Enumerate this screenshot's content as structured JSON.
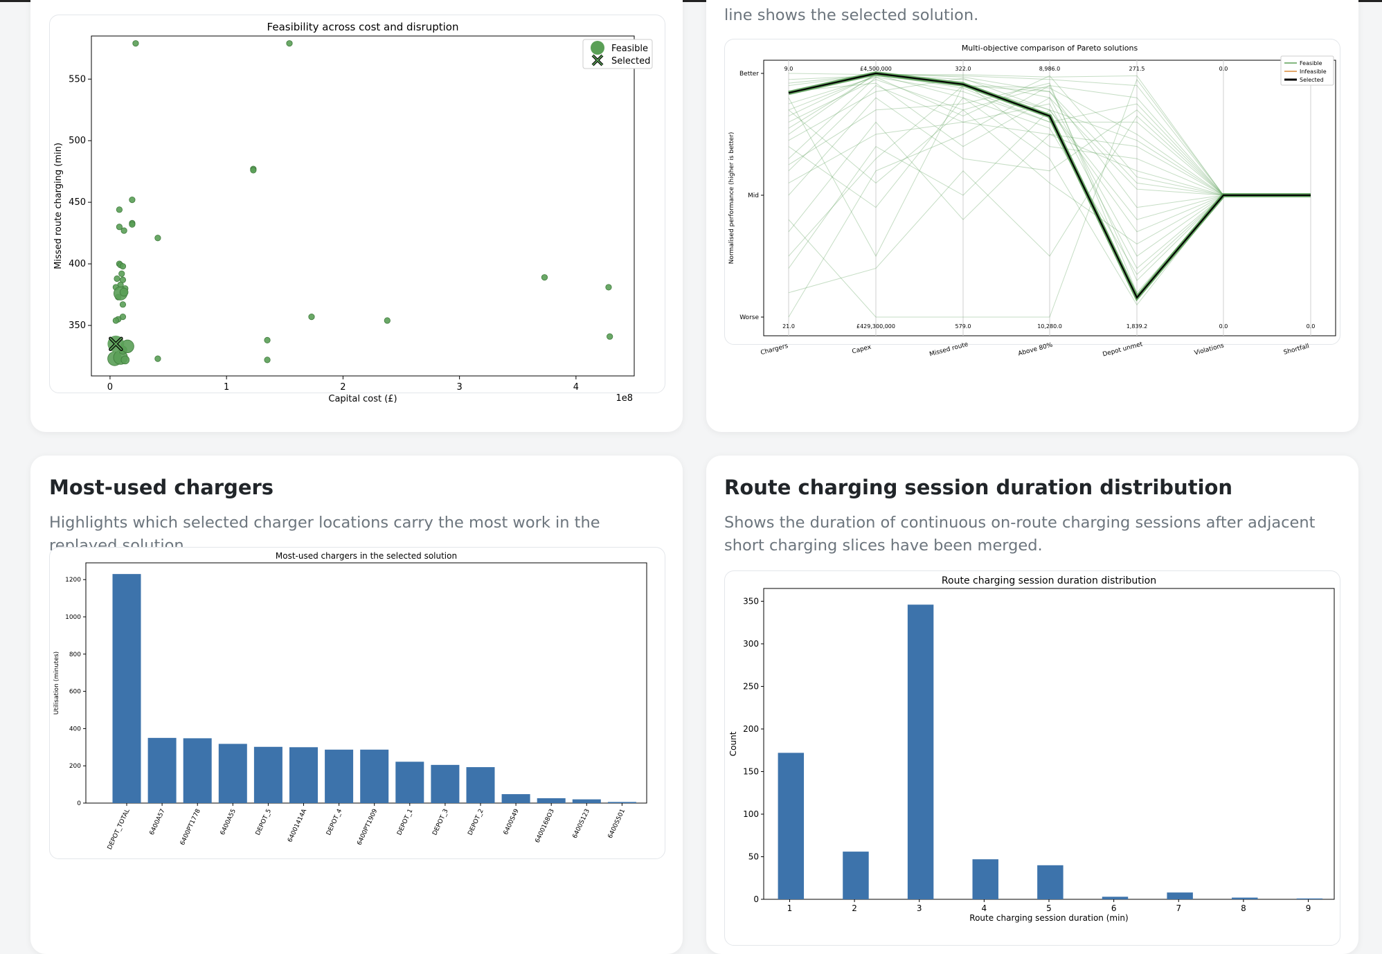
{
  "cards": {
    "scatter": {
      "desc_tail": ""
    },
    "parallel": {
      "desc_tail": "line shows the selected solution."
    },
    "chargers": {
      "title": "Most-used chargers",
      "desc": "Highlights which selected charger locations carry the most work in the replayed solution."
    },
    "sessions": {
      "title": "Route charging session duration distribution",
      "desc": "Shows the duration of continuous on-route charging sessions after adjacent short charging slices have been merged."
    }
  },
  "colors": {
    "feasible": "#5a9f56",
    "feasible_edge": "#3f7a3c",
    "selected_edge": "#000000",
    "bar": "#3d73ab",
    "selected_line": "#000000",
    "infeasible": "#d98b3a"
  },
  "chart_data": [
    {
      "type": "scatter",
      "title": "Feasibility across cost and disruption",
      "xlabel": "Capital cost (£)",
      "ylabel": "Missed route charging (min)",
      "x_scale_label": "1e8",
      "x_ticks": [
        "0",
        "1",
        "2",
        "3",
        "4"
      ],
      "y_ticks": [
        "350",
        "400",
        "450",
        "500",
        "550"
      ],
      "xlim": [
        -0.16,
        4.5
      ],
      "ylim": [
        309,
        585
      ],
      "legend_position": "top-right",
      "legend": [
        "Feasible",
        "Selected"
      ],
      "series": [
        {
          "name": "Feasible",
          "points": [
            [
              0.22,
              579
            ],
            [
              1.54,
              579
            ],
            [
              1.23,
              477
            ],
            [
              1.23,
              476
            ],
            [
              0.19,
              452
            ],
            [
              0.08,
              444
            ],
            [
              0.19,
              433
            ],
            [
              0.19,
              432
            ],
            [
              0.08,
              430
            ],
            [
              0.12,
              427
            ],
            [
              0.41,
              421
            ],
            [
              0.08,
              400
            ],
            [
              0.09,
              399
            ],
            [
              0.11,
              398
            ],
            [
              0.1,
              392
            ],
            [
              0.06,
              388
            ],
            [
              0.11,
              387
            ],
            [
              0.09,
              383
            ],
            [
              0.05,
              381
            ],
            [
              0.13,
              380
            ],
            [
              0.07,
              373
            ],
            [
              0.11,
              367
            ],
            [
              3.73,
              389
            ],
            [
              4.28,
              381
            ],
            [
              1.73,
              357
            ],
            [
              2.38,
              354
            ],
            [
              0.11,
              357
            ],
            [
              0.07,
              355
            ],
            [
              0.05,
              354
            ],
            [
              4.29,
              341
            ],
            [
              1.35,
              338
            ],
            [
              1.35,
              322
            ],
            [
              0.41,
              323
            ],
            [
              0.04,
              323
            ],
            [
              0.09,
              324
            ],
            [
              0.13,
              322
            ],
            [
              0.11,
              330
            ],
            [
              0.15,
              333
            ],
            [
              0.09,
              376
            ],
            [
              0.12,
              377
            ]
          ],
          "sizes": [
            1,
            1,
            1,
            1,
            1,
            1,
            1,
            1,
            1,
            1,
            1,
            1,
            1,
            1,
            1,
            1,
            1,
            1,
            1,
            1,
            1,
            1,
            1,
            1,
            1,
            1,
            1,
            1,
            1,
            1,
            1,
            1,
            1,
            2.4,
            2.4,
            1.4,
            1.4,
            2.2,
            2.3,
            1.4
          ]
        },
        {
          "name": "Selected",
          "points": [
            [
              0.05,
              335
            ]
          ]
        }
      ]
    },
    {
      "type": "parallel",
      "title": "Multi-objective comparison of Pareto solutions",
      "ylabel": "Normalised performance (higher is better)",
      "y_ticks": [
        "Better",
        "Mid",
        "Worse"
      ],
      "legend_position": "top-right",
      "legend": [
        "Feasible",
        "Infeasible",
        "Selected"
      ],
      "axes": [
        {
          "label": "Chargers",
          "best": "9.0",
          "worst": "21.0"
        },
        {
          "label": "Capex",
          "best": "£4,500,000",
          "worst": "£429,300,000"
        },
        {
          "label": "Missed route",
          "best": "322.0",
          "worst": "579.0"
        },
        {
          "label": "Above 80%",
          "best": "8,986.0",
          "worst": "10,280.0"
        },
        {
          "label": "Depot unmet",
          "best": "271.5",
          "worst": "1,839.2"
        },
        {
          "label": "Violations",
          "best": "0.0",
          "worst": "0.0"
        },
        {
          "label": "Shortfall",
          "best": "0.0",
          "worst": "0.0"
        }
      ],
      "selected": [
        0.84,
        1.0,
        0.91,
        0.65,
        -0.84,
        0.0,
        0.0
      ],
      "feasible_lines": [
        [
          0.9,
          0.99,
          0.95,
          0.8,
          -0.5,
          0.0,
          0.0
        ],
        [
          0.7,
          0.98,
          0.9,
          0.7,
          -0.2,
          0.0,
          0.0
        ],
        [
          0.5,
          1.0,
          0.97,
          0.85,
          0.1,
          0.0,
          0.0
        ],
        [
          0.3,
          0.97,
          0.85,
          0.6,
          0.6,
          0.0,
          0.0
        ],
        [
          0.6,
          0.95,
          0.7,
          0.9,
          -0.7,
          0.0,
          0.0
        ],
        [
          1.0,
          0.99,
          0.98,
          0.95,
          0.9,
          0.0,
          0.0
        ],
        [
          0.2,
          0.9,
          0.6,
          0.5,
          0.4,
          0.0,
          0.0
        ],
        [
          0.0,
          0.8,
          0.3,
          0.2,
          0.7,
          0.0,
          0.0
        ],
        [
          -0.3,
          0.6,
          -0.2,
          0.5,
          0.2,
          0.0,
          0.0
        ],
        [
          -0.6,
          0.4,
          0.0,
          0.7,
          -0.3,
          0.0,
          0.0
        ],
        [
          -1.0,
          0.2,
          0.5,
          0.9,
          0.8,
          0.0,
          0.0
        ],
        [
          0.4,
          -0.1,
          0.8,
          0.3,
          -0.9,
          0.0,
          0.0
        ],
        [
          0.8,
          -0.5,
          0.9,
          0.88,
          0.5,
          0.0,
          0.0
        ],
        [
          -0.2,
          -1.0,
          -1.0,
          -1.0,
          0.95,
          0.0,
          0.0
        ],
        [
          0.1,
          0.5,
          0.6,
          0.75,
          -0.6,
          0.0,
          0.0
        ],
        [
          0.95,
          0.98,
          0.93,
          0.4,
          0.3,
          0.0,
          0.0
        ],
        [
          0.7,
          0.1,
          0.7,
          0.1,
          -0.4,
          0.0,
          0.0
        ],
        [
          -0.8,
          -0.6,
          0.2,
          -0.5,
          0.65,
          0.0,
          0.0
        ],
        [
          0.55,
          0.99,
          0.99,
          0.97,
          0.98,
          0.0,
          0.0
        ],
        [
          0.85,
          0.92,
          0.4,
          0.8,
          0.05,
          0.0,
          0.0
        ],
        [
          0.25,
          0.7,
          0.75,
          0.92,
          -0.8,
          0.0,
          0.0
        ],
        [
          0.65,
          0.99,
          0.88,
          0.6,
          0.75,
          0.0,
          0.0
        ],
        [
          -0.5,
          0.3,
          0.9,
          0.85,
          -0.1,
          0.0,
          0.0
        ],
        [
          0.45,
          0.85,
          0.96,
          0.7,
          0.45,
          0.0,
          0.0
        ],
        [
          0.92,
          0.99,
          0.8,
          0.55,
          -0.65,
          0.0,
          0.0
        ],
        [
          0.75,
          0.97,
          0.65,
          0.98,
          0.15,
          0.0,
          0.0
        ]
      ]
    },
    {
      "type": "bar",
      "title": "Most-used chargers in the selected solution",
      "ylabel": "Utilisation (minutes)",
      "ylim": [
        0,
        1290
      ],
      "y_ticks": [
        0,
        200,
        400,
        600,
        800,
        1000,
        1200
      ],
      "categories": [
        "DEPOT_TOTAL",
        "6400A57",
        "6400PT1778",
        "6400A55",
        "DEPOT_5",
        "64001414A",
        "DEPOT_4",
        "6400PT1909",
        "DEPOT_1",
        "DEPOT_3",
        "DEPOT_2",
        "6400S49",
        "6400168O3",
        "6400S123",
        "6400S501"
      ],
      "values": [
        1230,
        350,
        348,
        318,
        302,
        300,
        287,
        287,
        222,
        205,
        193,
        48,
        26,
        20,
        6
      ]
    },
    {
      "type": "bar",
      "title": "Route charging session duration distribution",
      "xlabel": "Route charging session duration (min)",
      "ylabel": "Count",
      "ylim": [
        0,
        365
      ],
      "xlim": [
        0.6,
        9.4
      ],
      "y_ticks": [
        0,
        50,
        100,
        150,
        200,
        250,
        300,
        350
      ],
      "x_ticks": [
        1,
        2,
        3,
        4,
        5,
        6,
        7,
        8,
        9
      ],
      "x": [
        1,
        2,
        3,
        4,
        5,
        6,
        7,
        8,
        9
      ],
      "values": [
        172,
        56,
        346,
        47,
        40,
        3,
        8,
        2,
        1
      ]
    }
  ]
}
